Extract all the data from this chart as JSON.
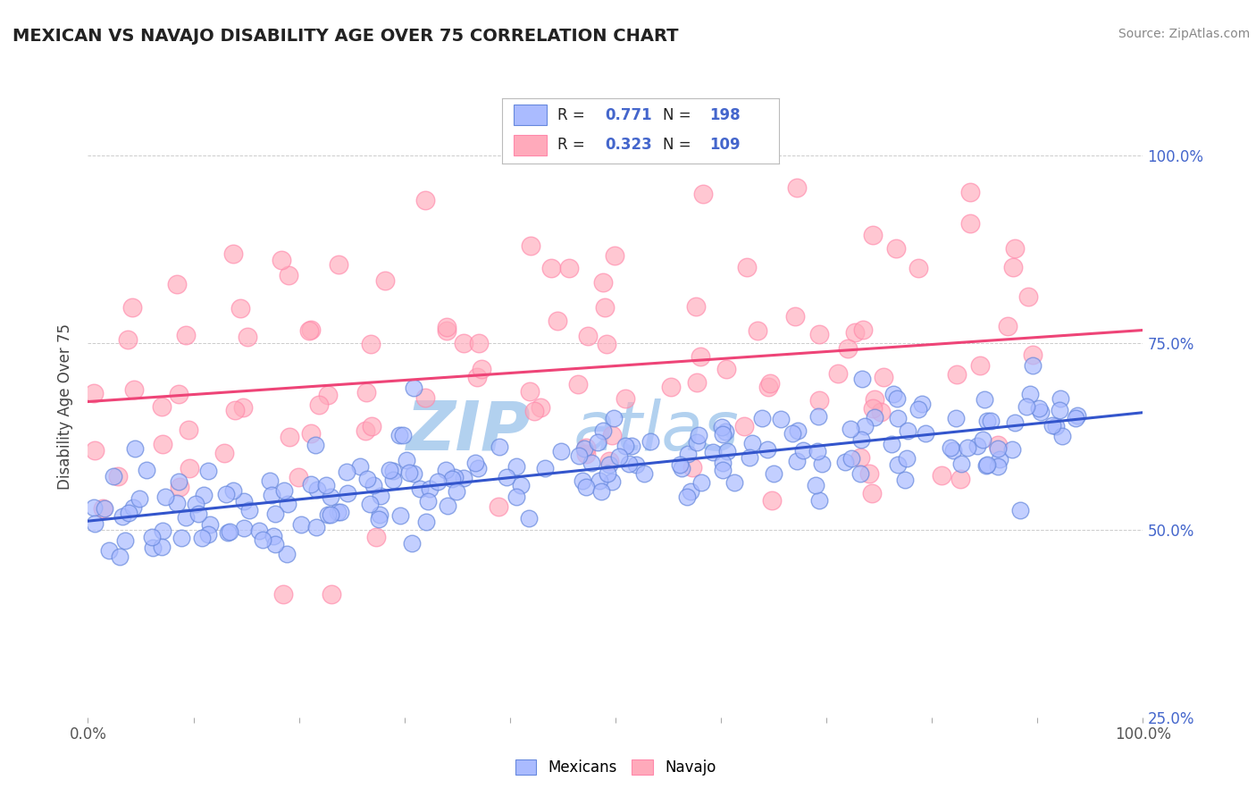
{
  "title": "MEXICAN VS NAVAJO DISABILITY AGE OVER 75 CORRELATION CHART",
  "source_text": "Source: ZipAtlas.com",
  "ylabel": "Disability Age Over 75",
  "watermark_line1": "ZIP",
  "watermark_line2": "atlas",
  "blue_color": "#aabbff",
  "blue_edge_color": "#6688dd",
  "pink_color": "#ffaabb",
  "pink_edge_color": "#ff88aa",
  "blue_line_color": "#3355cc",
  "pink_line_color": "#ee4477",
  "bg_color": "#ffffff",
  "grid_color": "#cccccc",
  "title_color": "#222222",
  "source_color": "#888888",
  "watermark_color": "#aaccee",
  "label_blue_color": "#4466cc",
  "label_pink_color": "#cc3366",
  "right_tick_color": "#4466cc",
  "R_blue": 0.771,
  "N_blue": 198,
  "R_pink": 0.323,
  "N_pink": 109,
  "x_min": 0.0,
  "x_max": 1.0,
  "y_min": 0.3,
  "y_max": 1.08,
  "blue_intercept": 0.505,
  "blue_slope": 0.155,
  "pink_intercept": 0.645,
  "pink_slope": 0.135,
  "seed_blue": 42,
  "seed_pink": 99
}
